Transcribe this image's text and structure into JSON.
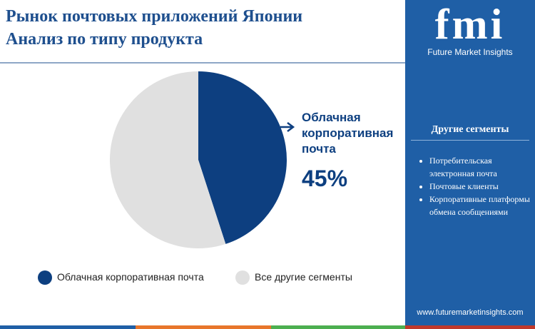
{
  "chart_data": {
    "type": "pie",
    "title": "Рынок почтовых приложений Японии",
    "subtitle": "Анализ по типу продукта",
    "categories": [
      "Облачная корпоративная почта",
      "Все другие сегменты"
    ],
    "values": [
      45,
      55
    ],
    "value_labels": [
      "45%",
      null
    ],
    "colors": [
      "#0d3f80",
      "#e0e0e0"
    ]
  },
  "sidebar": {
    "brand": "fmi",
    "brand_name": "Future Market Insights",
    "heading": "Другие сегменты",
    "items": [
      "Потребительская электронная почта",
      "Почтовые клиенты",
      "Корпоративные платформы обмена сообщениями"
    ],
    "url": "www.futuremarketinsights.com"
  }
}
